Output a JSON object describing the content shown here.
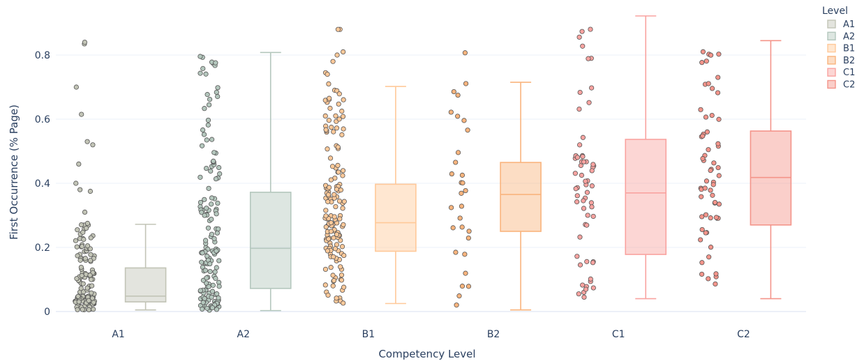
{
  "chart_data": {
    "type": "box",
    "xlabel": "Competency Level",
    "ylabel": "First Occurrence (% Page)",
    "ylim": [
      -0.01,
      0.95
    ],
    "yticks": [
      0,
      0.2,
      0.4,
      0.6,
      0.8
    ],
    "ytick_labels": [
      "0",
      "0.2",
      "0.4",
      "0.6",
      "0.8"
    ],
    "grid": true,
    "legend": {
      "title": "Level",
      "placement": "top-right"
    },
    "categories": [
      "A1",
      "A2",
      "B1",
      "B2",
      "C1",
      "C2"
    ],
    "series": [
      {
        "name": "A1",
        "color": "#c2c4b6",
        "whisker_low": 0.005,
        "q1": 0.03,
        "median": 0.048,
        "q3": 0.136,
        "whisker_high": 0.272,
        "point_count": 150,
        "outliers": [
          0.835,
          0.84,
          0.7,
          0.615,
          0.53,
          0.52,
          0.46,
          0.4,
          0.38,
          0.375,
          0.31,
          0.275,
          0.26,
          0.255,
          0.23,
          0.225,
          0.205
        ]
      },
      {
        "name": "A2",
        "color": "#b4c7bd",
        "whisker_low": 0.003,
        "q1": 0.072,
        "median": 0.197,
        "q3": 0.372,
        "whisker_high": 0.808,
        "point_count": 150
      },
      {
        "name": "B1",
        "color": "#ffc999",
        "whisker_low": 0.025,
        "q1": 0.188,
        "median": 0.277,
        "q3": 0.397,
        "whisker_high": 0.702,
        "point_count": 150,
        "outliers": [
          0.88,
          0.88,
          0.81,
          0.8,
          0.78,
          0.745,
          0.74,
          0.71
        ]
      },
      {
        "name": "B2",
        "color": "#f9b47d",
        "whisker_low": 0.005,
        "q1": 0.25,
        "median": 0.365,
        "q3": 0.465,
        "whisker_high": 0.715,
        "point_count": 30,
        "outliers": [
          0.807
        ]
      },
      {
        "name": "C1",
        "color": "#f9a3a0",
        "whisker_low": 0.04,
        "q1": 0.178,
        "median": 0.37,
        "q3": 0.537,
        "whisker_high": 0.922,
        "point_count": 60
      },
      {
        "name": "C2",
        "color": "#f4948a",
        "whisker_low": 0.04,
        "q1": 0.27,
        "median": 0.418,
        "q3": 0.563,
        "whisker_high": 0.845,
        "point_count": 60
      }
    ]
  }
}
